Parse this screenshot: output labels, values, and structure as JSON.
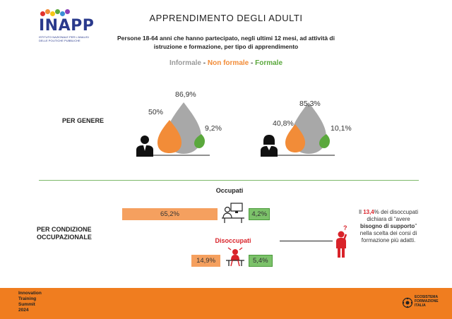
{
  "logo": {
    "text": "INAPP",
    "subtitle": "Istituto nazionale per l'analisi delle politiche pubbliche"
  },
  "title": "APPRENDIMENTO DEGLI ADULTI",
  "subtitle": "Persone 18-64 anni che hanno partecipato, negli ultimi 12 mesi, ad attività di istruzione e formazione, per tipo di apprendimento",
  "legend": {
    "informale": "Informale",
    "sep1": " - ",
    "non_formale": "Non formale",
    "sep2": " - ",
    "formale": "Formale"
  },
  "colors": {
    "informale": "#a8a8a8",
    "non_formale": "#f28c38",
    "formale": "#5aa83c",
    "highlight": "#d9232a",
    "footer": "#f07d1f"
  },
  "sections": {
    "genere": "PER GENERE",
    "condizione": "PER CONDIZIONE OCCUPAZIONALE"
  },
  "chart_data": [
    {
      "type": "bar",
      "group": "PER GENERE",
      "categories": [
        "Uomini",
        "Donne"
      ],
      "series": [
        {
          "name": "Informale",
          "values": [
            86.9,
            85.3
          ],
          "labels": [
            "86,9%",
            "85,3%"
          ]
        },
        {
          "name": "Non formale",
          "values": [
            50,
            40.8
          ],
          "labels": [
            "50%",
            "40,8%"
          ]
        },
        {
          "name": "Formale",
          "values": [
            9.2,
            10.1
          ],
          "labels": [
            "9,2%",
            "10,1%"
          ]
        }
      ]
    },
    {
      "type": "bar",
      "group": "PER CONDIZIONE OCCUPAZIONALE",
      "categories": [
        "Occupati",
        "Disoccupati"
      ],
      "series": [
        {
          "name": "Non formale",
          "values": [
            65.2,
            14.9
          ],
          "labels": [
            "65,2%",
            "14,9%"
          ]
        },
        {
          "name": "Formale",
          "values": [
            4.2,
            5.4
          ],
          "labels": [
            "4,2%",
            "5,4%"
          ]
        }
      ]
    }
  ],
  "note": {
    "part1": "Il ",
    "highlight": "13,4",
    "part2": "% dei disoccupati dichiara di “avere ",
    "bold": "bisogno di supporto",
    "part3": "” nella scelta dei corsi di formazione più adatti."
  },
  "footer": {
    "left_lines": [
      "Innovation",
      "Training",
      "Summit",
      "2024"
    ],
    "right_text": "ECOSISTEMA FORMAZIONE ITALIA"
  }
}
